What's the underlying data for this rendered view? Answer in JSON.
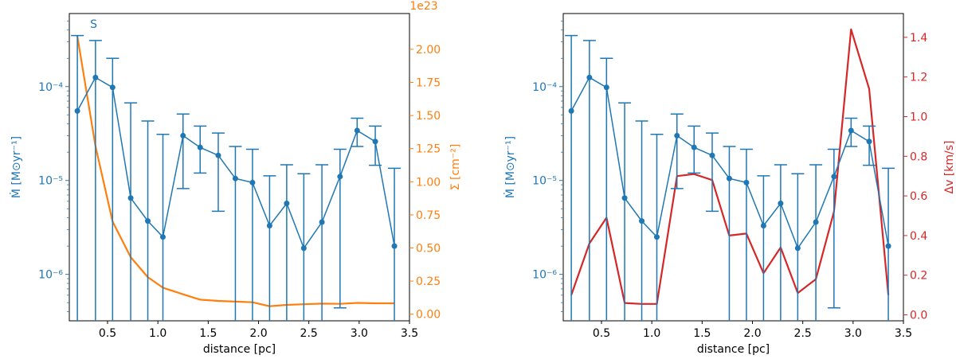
{
  "chart_data": [
    {
      "type": "line",
      "title": "",
      "annotation": "S",
      "xlabel": "distance [pc]",
      "ylabel_left": "Ṁ [M⊙yr⁻¹]",
      "ylabel_right": "Σ [cm⁻²]",
      "right_offset_text": "1e23",
      "xlim": [
        0.12,
        3.5
      ],
      "xticks": [
        0.5,
        1.0,
        1.5,
        2.0,
        2.5,
        3.0,
        3.5
      ],
      "xtick_labels": [
        "0.5",
        "1.0",
        "1.5",
        "2.0",
        "2.5",
        "3.0",
        "3.5"
      ],
      "ylim_left_log": [
        3.2e-07,
        0.0006
      ],
      "yticks_left_labels": [
        "10⁻⁴",
        "10⁻⁵",
        "10⁻⁶"
      ],
      "ylim_right": [
        -0.05,
        2.27
      ],
      "yticks_right": [
        0.0,
        0.25,
        0.5,
        0.75,
        1.0,
        1.25,
        1.5,
        1.75,
        2.0
      ],
      "yticks_right_labels": [
        "0.00",
        "0.25",
        "0.50",
        "0.75",
        "1.00",
        "1.25",
        "1.50",
        "1.75",
        "2.00"
      ],
      "left_color": "#1f77b4",
      "right_color": "#ff7f0e",
      "x": [
        0.2,
        0.38,
        0.55,
        0.73,
        0.9,
        1.05,
        1.25,
        1.42,
        1.6,
        1.77,
        1.94,
        2.11,
        2.28,
        2.45,
        2.63,
        2.81,
        2.98,
        3.16,
        3.35
      ],
      "series": [
        {
          "name": "Mdot",
          "axis": "left",
          "values": [
            5.5e-05,
            0.000125,
            9.8e-05,
            6.5e-06,
            3.7e-06,
            2.5e-06,
            3e-05,
            2.25e-05,
            1.85e-05,
            1.05e-05,
            9.5e-06,
            3.3e-06,
            5.7e-06,
            1.9e-06,
            3.6e-06,
            1.1e-05,
            3.4e-05,
            2.6e-05,
            2e-06
          ],
          "err_upper": [
            0.00035,
            0.00031,
            0.0002,
            6.7e-05,
            4.3e-05,
            3.1e-05,
            5.1e-05,
            3.8e-05,
            3.2e-05,
            2.3e-05,
            2.15e-05,
            1.12e-05,
            1.47e-05,
            1.18e-05,
            1.47e-05,
            2.15e-05,
            4.6e-05,
            3.8e-05,
            1.35e-05
          ],
          "err_lower": [
            null,
            null,
            null,
            null,
            null,
            null,
            8.2e-06,
            1.2e-05,
            4.7e-06,
            null,
            null,
            null,
            null,
            null,
            null,
            4.4e-07,
            2.3e-05,
            1.45e-05,
            null
          ]
        },
        {
          "name": "Sigma",
          "axis": "right",
          "values": [
            2.1,
            1.27,
            0.7,
            0.43,
            0.28,
            0.2,
            0.15,
            0.11,
            0.1,
            0.095,
            0.09,
            0.06,
            0.07,
            0.075,
            0.08,
            0.078,
            0.085,
            0.082,
            0.082
          ]
        }
      ]
    },
    {
      "type": "line",
      "title": "",
      "xlabel": "distance [pc]",
      "ylabel_left": "Ṁ [M⊙yr⁻¹]",
      "ylabel_right": "Δv [km/s]",
      "xlim": [
        0.12,
        3.5
      ],
      "xticks": [
        0.5,
        1.0,
        1.5,
        2.0,
        2.5,
        3.0,
        3.5
      ],
      "xtick_labels": [
        "0.5",
        "1.0",
        "1.5",
        "2.0",
        "2.5",
        "3.0",
        "3.5"
      ],
      "ylim_left_log": [
        3.2e-07,
        0.0006
      ],
      "yticks_left_labels": [
        "10⁻⁴",
        "10⁻⁵",
        "10⁻⁶"
      ],
      "ylim_right": [
        -0.03,
        1.52
      ],
      "yticks_right": [
        0.0,
        0.2,
        0.4,
        0.6,
        0.8,
        1.0,
        1.2,
        1.4
      ],
      "yticks_right_labels": [
        "0.0",
        "0.2",
        "0.4",
        "0.6",
        "0.8",
        "1.0",
        "1.2",
        "1.4"
      ],
      "left_color": "#1f77b4",
      "right_color": "#d62728",
      "x": [
        0.2,
        0.38,
        0.55,
        0.73,
        0.9,
        1.05,
        1.25,
        1.42,
        1.6,
        1.77,
        1.94,
        2.11,
        2.28,
        2.45,
        2.63,
        2.81,
        2.98,
        3.16,
        3.35
      ],
      "series": [
        {
          "name": "Mdot",
          "axis": "left",
          "values": [
            5.5e-05,
            0.000125,
            9.8e-05,
            6.5e-06,
            3.7e-06,
            2.5e-06,
            3e-05,
            2.25e-05,
            1.85e-05,
            1.05e-05,
            9.5e-06,
            3.3e-06,
            5.7e-06,
            1.9e-06,
            3.6e-06,
            1.1e-05,
            3.4e-05,
            2.6e-05,
            2e-06
          ],
          "err_upper": [
            0.00035,
            0.00031,
            0.0002,
            6.7e-05,
            4.3e-05,
            3.1e-05,
            5.1e-05,
            3.8e-05,
            3.2e-05,
            2.3e-05,
            2.15e-05,
            1.12e-05,
            1.47e-05,
            1.18e-05,
            1.47e-05,
            2.15e-05,
            4.6e-05,
            3.8e-05,
            1.35e-05
          ],
          "err_lower": [
            null,
            null,
            null,
            null,
            null,
            null,
            8.2e-06,
            1.2e-05,
            4.7e-06,
            null,
            null,
            null,
            null,
            null,
            null,
            4.4e-07,
            2.3e-05,
            1.45e-05,
            null
          ]
        },
        {
          "name": "delta_v",
          "axis": "right",
          "values": [
            0.1,
            0.36,
            0.49,
            0.06,
            0.055,
            0.055,
            0.7,
            0.71,
            0.68,
            0.4,
            0.41,
            0.21,
            0.34,
            0.11,
            0.18,
            0.52,
            1.44,
            1.14,
            0.1
          ]
        }
      ]
    }
  ]
}
